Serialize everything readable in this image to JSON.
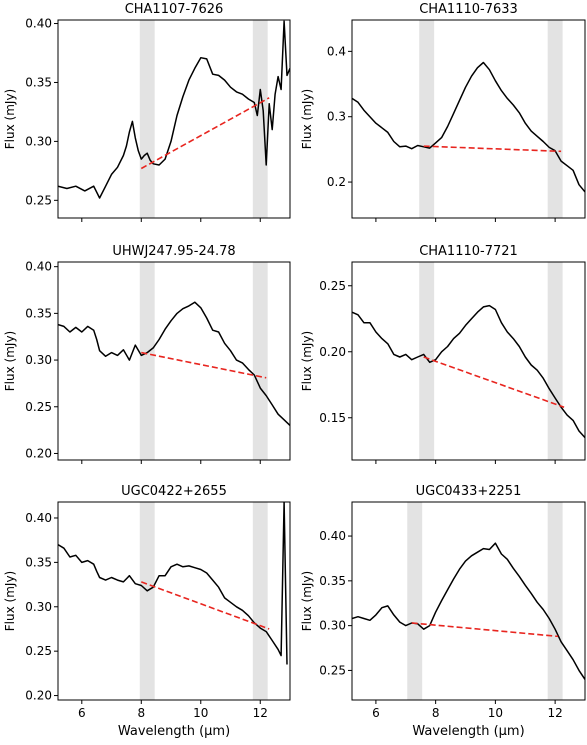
{
  "figure": {
    "xlabel": "Wavelength (µm)",
    "ylabel": "Flux (mJy)"
  },
  "chart_data": [
    {
      "type": "line",
      "title": "CHA1107-7626",
      "xlabel": "",
      "ylabel": "Flux (mJy)",
      "xlim": [
        5.2,
        13.0
      ],
      "ylim": [
        0.235,
        0.403
      ],
      "xticks": [
        6,
        8,
        10,
        12
      ],
      "xtick_labels": [
        "",
        "",
        "",
        ""
      ],
      "yticks": [
        0.25,
        0.3,
        0.35,
        0.4
      ],
      "ytick_labels": [
        "0.25",
        "0.30",
        "0.35",
        "0.40"
      ],
      "shaded_bands": [
        [
          7.95,
          8.45
        ],
        [
          11.75,
          12.25
        ]
      ],
      "spectrum": {
        "x": [
          5.2,
          5.5,
          5.8,
          6.1,
          6.4,
          6.6,
          6.8,
          7.0,
          7.2,
          7.4,
          7.5,
          7.6,
          7.7,
          7.8,
          7.9,
          8.0,
          8.1,
          8.2,
          8.3,
          8.4,
          8.6,
          8.8,
          9.0,
          9.2,
          9.4,
          9.6,
          9.8,
          10.0,
          10.2,
          10.4,
          10.6,
          10.8,
          11.0,
          11.2,
          11.4,
          11.6,
          11.8,
          11.9,
          12.0,
          12.1,
          12.2,
          12.3,
          12.4,
          12.5,
          12.6,
          12.7,
          12.8,
          12.9,
          13.0
        ],
        "y": [
          0.262,
          0.26,
          0.262,
          0.258,
          0.262,
          0.252,
          0.262,
          0.272,
          0.278,
          0.288,
          0.296,
          0.308,
          0.317,
          0.303,
          0.292,
          0.285,
          0.288,
          0.29,
          0.284,
          0.281,
          0.28,
          0.285,
          0.3,
          0.322,
          0.338,
          0.352,
          0.362,
          0.371,
          0.37,
          0.357,
          0.356,
          0.352,
          0.346,
          0.342,
          0.34,
          0.336,
          0.333,
          0.322,
          0.344,
          0.326,
          0.28,
          0.332,
          0.31,
          0.34,
          0.355,
          0.344,
          0.402,
          0.356,
          0.362
        ]
      },
      "continuum": {
        "x": [
          8.0,
          12.3
        ],
        "y": [
          0.277,
          0.337
        ]
      }
    },
    {
      "type": "line",
      "title": "CHA1110-7633",
      "xlabel": "",
      "ylabel": "Flux (mJy)",
      "xlim": [
        5.2,
        13.0
      ],
      "ylim": [
        0.145,
        0.448
      ],
      "xticks": [
        6,
        8,
        10,
        12
      ],
      "xtick_labels": [
        "",
        "",
        "",
        ""
      ],
      "yticks": [
        0.2,
        0.3,
        0.4
      ],
      "ytick_labels": [
        "0.2",
        "0.3",
        "0.4"
      ],
      "shaded_bands": [
        [
          7.45,
          7.95
        ],
        [
          11.75,
          12.25
        ]
      ],
      "spectrum": {
        "x": [
          5.2,
          5.4,
          5.6,
          5.8,
          6.0,
          6.2,
          6.4,
          6.6,
          6.8,
          7.0,
          7.2,
          7.4,
          7.6,
          7.8,
          8.0,
          8.2,
          8.4,
          8.6,
          8.8,
          9.0,
          9.2,
          9.4,
          9.6,
          9.8,
          10.0,
          10.2,
          10.4,
          10.6,
          10.8,
          11.0,
          11.2,
          11.4,
          11.6,
          11.8,
          12.0,
          12.2,
          12.4,
          12.6,
          12.8,
          13.0
        ],
        "y": [
          0.328,
          0.322,
          0.31,
          0.3,
          0.29,
          0.283,
          0.276,
          0.262,
          0.254,
          0.255,
          0.251,
          0.256,
          0.254,
          0.252,
          0.26,
          0.268,
          0.285,
          0.305,
          0.325,
          0.345,
          0.362,
          0.375,
          0.383,
          0.372,
          0.355,
          0.34,
          0.328,
          0.318,
          0.306,
          0.29,
          0.278,
          0.27,
          0.262,
          0.253,
          0.248,
          0.232,
          0.225,
          0.218,
          0.196,
          0.185
        ]
      },
      "continuum": {
        "x": [
          7.6,
          12.2
        ],
        "y": [
          0.255,
          0.247
        ]
      }
    },
    {
      "type": "line",
      "title": "UHWJ247.95-24.78",
      "xlabel": "",
      "ylabel": "Flux (mJy)",
      "xlim": [
        5.2,
        13.0
      ],
      "ylim": [
        0.193,
        0.405
      ],
      "xticks": [
        6,
        8,
        10,
        12
      ],
      "xtick_labels": [
        "",
        "",
        "",
        ""
      ],
      "yticks": [
        0.2,
        0.25,
        0.3,
        0.35,
        0.4
      ],
      "ytick_labels": [
        "0.20",
        "0.25",
        "0.30",
        "0.35",
        "0.40"
      ],
      "shaded_bands": [
        [
          7.95,
          8.45
        ],
        [
          11.75,
          12.25
        ]
      ],
      "spectrum": {
        "x": [
          5.2,
          5.4,
          5.6,
          5.8,
          6.0,
          6.2,
          6.4,
          6.5,
          6.6,
          6.8,
          7.0,
          7.2,
          7.4,
          7.6,
          7.8,
          8.0,
          8.2,
          8.4,
          8.6,
          8.8,
          9.0,
          9.2,
          9.4,
          9.6,
          9.8,
          10.0,
          10.2,
          10.4,
          10.6,
          10.8,
          11.0,
          11.2,
          11.4,
          11.6,
          11.8,
          12.0,
          12.2,
          12.4,
          12.6,
          12.8,
          13.0
        ],
        "y": [
          0.338,
          0.336,
          0.33,
          0.335,
          0.33,
          0.336,
          0.332,
          0.322,
          0.31,
          0.304,
          0.308,
          0.305,
          0.311,
          0.3,
          0.316,
          0.305,
          0.308,
          0.313,
          0.322,
          0.333,
          0.342,
          0.35,
          0.355,
          0.358,
          0.362,
          0.356,
          0.345,
          0.332,
          0.33,
          0.318,
          0.31,
          0.3,
          0.297,
          0.29,
          0.284,
          0.27,
          0.262,
          0.252,
          0.242,
          0.236,
          0.23
        ]
      },
      "continuum": {
        "x": [
          8.0,
          12.2
        ],
        "y": [
          0.308,
          0.281
        ]
      }
    },
    {
      "type": "line",
      "title": "CHA1110-7721",
      "xlabel": "",
      "ylabel": "Flux (mJy)",
      "xlim": [
        5.2,
        13.0
      ],
      "ylim": [
        0.118,
        0.268
      ],
      "xticks": [
        6,
        8,
        10,
        12
      ],
      "xtick_labels": [
        "",
        "",
        "",
        ""
      ],
      "yticks": [
        0.15,
        0.2,
        0.25
      ],
      "ytick_labels": [
        "0.15",
        "0.20",
        "0.25"
      ],
      "shaded_bands": [
        [
          7.45,
          7.95
        ],
        [
          11.75,
          12.25
        ]
      ],
      "spectrum": {
        "x": [
          5.2,
          5.4,
          5.6,
          5.8,
          6.0,
          6.2,
          6.4,
          6.6,
          6.8,
          7.0,
          7.2,
          7.4,
          7.6,
          7.8,
          8.0,
          8.2,
          8.4,
          8.6,
          8.8,
          9.0,
          9.2,
          9.4,
          9.6,
          9.8,
          10.0,
          10.2,
          10.4,
          10.6,
          10.8,
          11.0,
          11.2,
          11.4,
          11.6,
          11.8,
          12.0,
          12.2,
          12.4,
          12.6,
          12.8,
          13.0
        ],
        "y": [
          0.23,
          0.228,
          0.222,
          0.222,
          0.215,
          0.21,
          0.206,
          0.198,
          0.196,
          0.198,
          0.194,
          0.196,
          0.198,
          0.192,
          0.194,
          0.2,
          0.204,
          0.21,
          0.214,
          0.22,
          0.225,
          0.23,
          0.234,
          0.235,
          0.232,
          0.222,
          0.215,
          0.21,
          0.204,
          0.196,
          0.19,
          0.186,
          0.18,
          0.172,
          0.165,
          0.158,
          0.152,
          0.148,
          0.14,
          0.135
        ]
      },
      "continuum": {
        "x": [
          7.6,
          12.3
        ],
        "y": [
          0.196,
          0.158
        ]
      }
    },
    {
      "type": "line",
      "title": "UGC0422+2655",
      "xlabel": "Wavelength (µm)",
      "ylabel": "Flux (mJy)",
      "xlim": [
        5.2,
        13.0
      ],
      "ylim": [
        0.195,
        0.418
      ],
      "xticks": [
        6,
        8,
        10,
        12
      ],
      "xtick_labels": [
        "6",
        "8",
        "10",
        "12"
      ],
      "yticks": [
        0.2,
        0.25,
        0.3,
        0.35,
        0.4
      ],
      "ytick_labels": [
        "0.20",
        "0.25",
        "0.30",
        "0.35",
        "0.40"
      ],
      "shaded_bands": [
        [
          7.95,
          8.45
        ],
        [
          11.75,
          12.25
        ]
      ],
      "spectrum": {
        "x": [
          5.2,
          5.4,
          5.6,
          5.8,
          6.0,
          6.2,
          6.4,
          6.5,
          6.6,
          6.8,
          7.0,
          7.2,
          7.4,
          7.6,
          7.8,
          8.0,
          8.2,
          8.4,
          8.6,
          8.8,
          9.0,
          9.2,
          9.4,
          9.6,
          9.8,
          10.0,
          10.2,
          10.4,
          10.6,
          10.8,
          11.0,
          11.2,
          11.4,
          11.6,
          11.8,
          12.0,
          12.2,
          12.4,
          12.6,
          12.7,
          12.8,
          12.9
        ],
        "y": [
          0.37,
          0.366,
          0.356,
          0.358,
          0.35,
          0.352,
          0.348,
          0.34,
          0.333,
          0.33,
          0.333,
          0.33,
          0.328,
          0.335,
          0.326,
          0.324,
          0.318,
          0.322,
          0.335,
          0.335,
          0.345,
          0.348,
          0.345,
          0.346,
          0.344,
          0.342,
          0.338,
          0.33,
          0.322,
          0.31,
          0.305,
          0.3,
          0.296,
          0.29,
          0.282,
          0.276,
          0.272,
          0.262,
          0.252,
          0.245,
          0.418,
          0.235
        ]
      },
      "continuum": {
        "x": [
          8.0,
          12.3
        ],
        "y": [
          0.328,
          0.275
        ]
      }
    },
    {
      "type": "line",
      "title": "UGC0433+2251",
      "xlabel": "Wavelength (µm)",
      "ylabel": "Flux (mJy)",
      "xlim": [
        5.2,
        13.0
      ],
      "ylim": [
        0.217,
        0.438
      ],
      "xticks": [
        6,
        8,
        10,
        12
      ],
      "xtick_labels": [
        "6",
        "8",
        "10",
        "12"
      ],
      "yticks": [
        0.25,
        0.3,
        0.35,
        0.4
      ],
      "ytick_labels": [
        "0.25",
        "0.30",
        "0.35",
        "0.40"
      ],
      "shaded_bands": [
        [
          7.05,
          7.55
        ],
        [
          11.75,
          12.25
        ]
      ],
      "spectrum": {
        "x": [
          5.2,
          5.4,
          5.6,
          5.8,
          6.0,
          6.2,
          6.4,
          6.6,
          6.8,
          7.0,
          7.2,
          7.4,
          7.6,
          7.8,
          8.0,
          8.2,
          8.4,
          8.6,
          8.8,
          9.0,
          9.2,
          9.4,
          9.6,
          9.8,
          10.0,
          10.2,
          10.4,
          10.6,
          10.8,
          11.0,
          11.2,
          11.4,
          11.6,
          11.8,
          12.0,
          12.2,
          12.4,
          12.6,
          12.8,
          13.0
        ],
        "y": [
          0.308,
          0.31,
          0.308,
          0.306,
          0.312,
          0.32,
          0.322,
          0.312,
          0.304,
          0.3,
          0.303,
          0.302,
          0.296,
          0.3,
          0.315,
          0.328,
          0.34,
          0.352,
          0.363,
          0.372,
          0.378,
          0.382,
          0.386,
          0.385,
          0.392,
          0.38,
          0.374,
          0.364,
          0.355,
          0.345,
          0.336,
          0.326,
          0.318,
          0.308,
          0.296,
          0.282,
          0.272,
          0.262,
          0.25,
          0.24
        ]
      },
      "continuum": {
        "x": [
          7.2,
          12.1
        ],
        "y": [
          0.303,
          0.288
        ]
      }
    }
  ]
}
